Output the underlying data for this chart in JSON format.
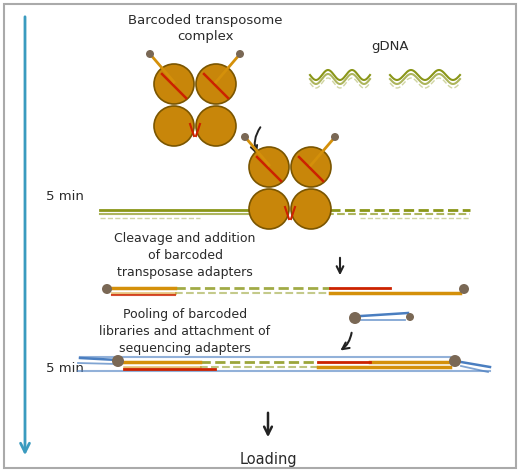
{
  "bg_color": "#ffffff",
  "border_color": "#aaaaaa",
  "text_color": "#2a2a2a",
  "title_complex": "Barcoded transposome\ncomplex",
  "title_gdna": "gDNA",
  "label_cleavage": "Cleavage and addition\nof barcoded\ntransposase adapters",
  "label_pooling": "Pooling of barcoded\nlibraries and attachment of\nsequencing adapters",
  "label_loading": "Loading",
  "label_5min_1": "5 min",
  "label_5min_2": "5 min",
  "sphere_color": "#c8860a",
  "sphere_edge": "#7a5500",
  "red_color": "#cc2200",
  "orange_color": "#d4900a",
  "olive_color": "#8a9618",
  "blue_color": "#4a7ec0",
  "gray_color": "#7a6855",
  "arrow_blue": "#3a9bbf",
  "arrow_black": "#222222",
  "fig_w": 5.2,
  "fig_h": 4.72,
  "dpi": 100
}
